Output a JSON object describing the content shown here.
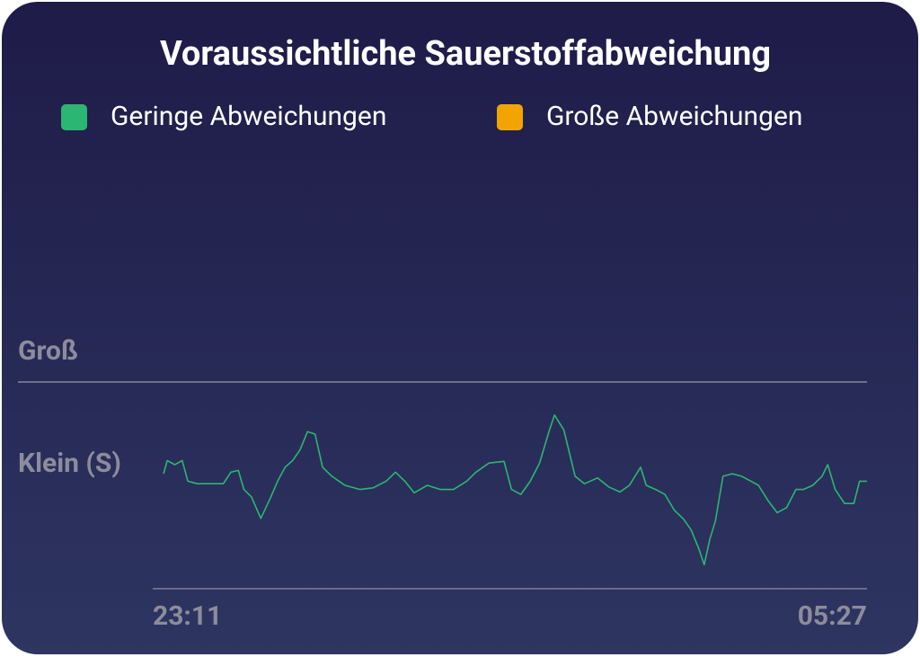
{
  "chart_data": {
    "type": "line",
    "title": "Voraussichtliche Sauerstoffabweichung",
    "series": [
      {
        "name": "Geringe Abweichungen",
        "color": "#2bb673",
        "x": [
          0,
          2,
          6,
          10,
          13,
          18,
          25,
          32,
          36,
          40,
          43,
          47,
          52,
          57,
          61,
          65,
          69,
          73,
          77,
          81,
          85,
          90,
          97,
          105,
          112,
          119,
          124,
          129,
          134,
          141,
          148,
          155,
          162,
          167,
          174,
          182,
          186,
          191,
          196,
          201,
          206,
          209,
          214,
          220,
          225,
          232,
          238,
          244,
          249,
          255,
          258,
          263,
          268,
          273,
          278,
          282,
          286,
          289,
          292,
          295,
          299,
          304,
          309,
          314,
          318,
          323,
          328,
          333,
          338,
          342,
          347,
          352,
          355,
          359,
          364,
          369,
          372,
          376
        ],
        "values": [
          0.89,
          1.05,
          1.0,
          1.05,
          0.8,
          0.77,
          0.77,
          0.77,
          0.91,
          0.93,
          0.7,
          0.61,
          0.35,
          0.59,
          0.8,
          0.97,
          1.05,
          1.18,
          1.4,
          1.37,
          0.97,
          0.86,
          0.75,
          0.7,
          0.72,
          0.8,
          0.91,
          0.8,
          0.66,
          0.75,
          0.7,
          0.7,
          0.8,
          0.91,
          1.02,
          1.04,
          0.7,
          0.64,
          0.8,
          1.02,
          1.4,
          1.6,
          1.42,
          0.86,
          0.77,
          0.84,
          0.73,
          0.67,
          0.75,
          0.97,
          0.75,
          0.7,
          0.64,
          0.45,
          0.34,
          0.21,
          -0.01,
          -0.21,
          0.1,
          0.32,
          0.86,
          0.89,
          0.86,
          0.8,
          0.75,
          0.57,
          0.42,
          0.48,
          0.7,
          0.7,
          0.75,
          0.86,
          1.0,
          0.7,
          0.53,
          0.53,
          0.8,
          0.8
        ]
      },
      {
        "name": "Große Abweichungen",
        "color": "#f2a500",
        "x": [],
        "values": []
      }
    ],
    "xlim": [
      0,
      376
    ],
    "xticks": [
      {
        "value": 0,
        "label": "23:11"
      },
      {
        "value": 376,
        "label": "05:27"
      }
    ],
    "ylim": [
      -0.5,
      2.5
    ],
    "yticks": [
      {
        "value": 1,
        "label": "Klein (S)"
      },
      {
        "value": 2,
        "label": "Groß"
      }
    ],
    "threshold": 2
  }
}
